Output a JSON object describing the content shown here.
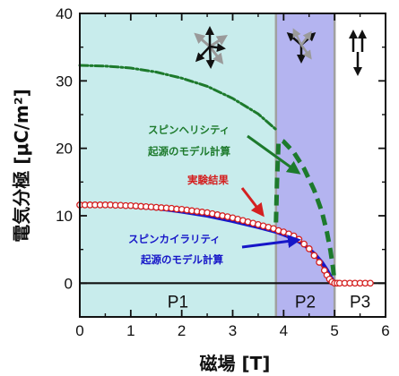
{
  "chart_data": {
    "type": "line",
    "xlabel": "磁場 [T]",
    "ylabel": "電気分極 [μC/m²]",
    "xlim": [
      0,
      6
    ],
    "ylim": [
      -5,
      40
    ],
    "xticks": [
      "0",
      "1",
      "2",
      "3",
      "4",
      "5",
      "6"
    ],
    "yticks": [
      "0",
      "10",
      "20",
      "30",
      "40"
    ],
    "grid": false,
    "regions": [
      {
        "label": "P1",
        "x0": 0,
        "x1": 3.85,
        "color": "#c8ecec"
      },
      {
        "label": "P2",
        "x0": 3.85,
        "x1": 5.0,
        "color": "#b4b4f0"
      },
      {
        "label": "P3",
        "x0": 5.0,
        "x1": 6,
        "color": "#ffffff"
      }
    ],
    "phase_boundaries": [
      3.85,
      5.0
    ],
    "series": [
      {
        "name": "実験結果",
        "style": "markers-with-line",
        "color": "#d42020",
        "x": [
          0.0,
          0.1,
          0.2,
          0.3,
          0.4,
          0.5,
          0.6,
          0.7,
          0.8,
          0.9,
          1.0,
          1.1,
          1.2,
          1.3,
          1.4,
          1.5,
          1.6,
          1.7,
          1.8,
          1.9,
          2.0,
          2.1,
          2.2,
          2.3,
          2.4,
          2.5,
          2.6,
          2.7,
          2.8,
          2.9,
          3.0,
          3.1,
          3.2,
          3.3,
          3.4,
          3.5,
          3.6,
          3.7,
          3.8,
          3.9,
          4.0,
          4.1,
          4.2,
          4.3,
          4.4,
          4.5,
          4.6,
          4.7,
          4.8,
          4.85,
          4.9,
          4.95,
          5.0,
          5.05,
          5.1,
          5.2,
          5.3,
          5.4,
          5.5,
          5.6,
          5.7
        ],
        "y": [
          11.6,
          11.6,
          11.6,
          11.6,
          11.6,
          11.6,
          11.6,
          11.55,
          11.55,
          11.5,
          11.5,
          11.45,
          11.4,
          11.35,
          11.3,
          11.25,
          11.2,
          11.15,
          11.1,
          11.0,
          10.95,
          10.85,
          10.75,
          10.65,
          10.55,
          10.45,
          10.3,
          10.15,
          10.0,
          9.85,
          9.7,
          9.5,
          9.3,
          9.1,
          8.9,
          8.7,
          8.5,
          8.3,
          8.1,
          7.8,
          7.6,
          7.3,
          7.0,
          6.5,
          5.8,
          5.1,
          4.1,
          3.1,
          1.9,
          1.2,
          0.6,
          0.2,
          0.0,
          0.0,
          0.0,
          0.0,
          0.0,
          0.0,
          0.0,
          0.0,
          0.0
        ]
      },
      {
        "name": "スピンカイラリティ起源のモデル計算",
        "style": "solid",
        "color": "#1616c8",
        "x": [
          0.0,
          0.5,
          1.0,
          1.5,
          2.0,
          2.5,
          3.0,
          3.5,
          3.85,
          4.0,
          4.2,
          4.4,
          4.6,
          4.75,
          4.85,
          4.92,
          4.97,
          5.0
        ],
        "y": [
          11.6,
          11.55,
          11.4,
          11.1,
          10.6,
          10.0,
          9.2,
          8.3,
          7.6,
          7.2,
          6.6,
          5.7,
          4.4,
          3.1,
          2.0,
          1.0,
          0.4,
          0.0
        ]
      },
      {
        "name": "スピンヘリシティ起源のモデル計算 (P1)",
        "style": "dash-dot",
        "color": "#1d7a2c",
        "x": [
          0.0,
          0.5,
          1.0,
          1.5,
          2.0,
          2.5,
          3.0,
          3.5,
          3.85
        ],
        "y": [
          32.3,
          32.2,
          31.9,
          31.3,
          30.4,
          29.2,
          27.4,
          25.1,
          22.8
        ]
      },
      {
        "name": "スピンヘリシティ起源のモデル計算 (P2)",
        "style": "dashed",
        "color": "#1d7a2c",
        "x": [
          3.85,
          3.87,
          3.9,
          3.95,
          4.0,
          4.2,
          4.4,
          4.6,
          4.75,
          4.85,
          4.92,
          4.97,
          5.0
        ],
        "y": [
          9.0,
          15.0,
          20.8,
          21.2,
          21.0,
          19.4,
          17.0,
          13.8,
          10.6,
          7.6,
          4.8,
          2.2,
          0.0
        ]
      }
    ],
    "annotations": [
      {
        "text_line1": "スピンヘリシティ",
        "text_line2": "起源のモデル計算",
        "color": "#1d7a2c"
      },
      {
        "text_line1": "実験結果",
        "color": "#d42020"
      },
      {
        "text_line1": "スピンカイラリティ",
        "text_line2": "起源のモデル計算",
        "color": "#1616c8"
      }
    ]
  }
}
